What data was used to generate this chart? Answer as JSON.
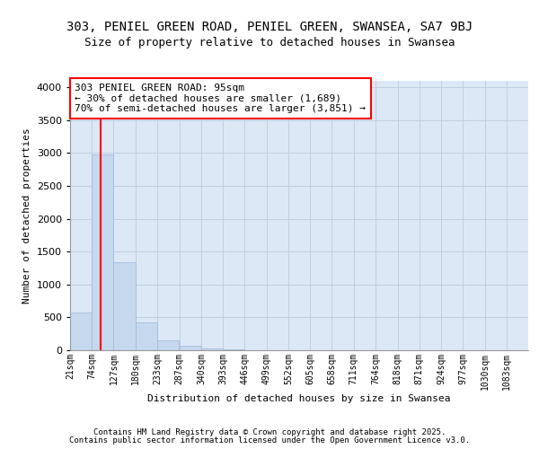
{
  "title1": "303, PENIEL GREEN ROAD, PENIEL GREEN, SWANSEA, SA7 9BJ",
  "title2": "Size of property relative to detached houses in Swansea",
  "xlabel": "Distribution of detached houses by size in Swansea",
  "ylabel": "Number of detached properties",
  "bar_color": "#c5d8ee",
  "bar_edgecolor": "#a0b8d8",
  "grid_color": "#c0cfe0",
  "bg_color": "#dce8f5",
  "vline_x": 95,
  "vline_color": "red",
  "annotation_text": "303 PENIEL GREEN ROAD: 95sqm\n← 30% of detached houses are smaller (1,689)\n70% of semi-detached houses are larger (3,851) →",
  "annotation_box_edgecolor": "red",
  "annotation_box_facecolor": "white",
  "bin_edges": [
    21,
    74,
    127,
    180,
    233,
    287,
    340,
    393,
    446,
    499,
    552,
    605,
    658,
    711,
    764,
    818,
    871,
    924,
    977,
    1030,
    1083,
    1136
  ],
  "bar_heights": [
    580,
    2980,
    1340,
    420,
    150,
    75,
    30,
    10,
    5,
    3,
    1,
    0,
    0,
    0,
    0,
    0,
    0,
    0,
    0,
    0,
    0
  ],
  "ylim": [
    0,
    4100
  ],
  "yticks": [
    0,
    500,
    1000,
    1500,
    2000,
    2500,
    3000,
    3500,
    4000
  ],
  "tick_labels": [
    "21sqm",
    "74sqm",
    "127sqm",
    "180sqm",
    "233sqm",
    "287sqm",
    "340sqm",
    "393sqm",
    "446sqm",
    "499sqm",
    "552sqm",
    "605sqm",
    "658sqm",
    "711sqm",
    "764sqm",
    "818sqm",
    "871sqm",
    "924sqm",
    "977sqm",
    "1030sqm",
    "1083sqm"
  ],
  "footer1": "Contains HM Land Registry data © Crown copyright and database right 2025.",
  "footer2": "Contains public sector information licensed under the Open Government Licence v3.0.",
  "title1_fontsize": 10,
  "title2_fontsize": 9,
  "xlabel_fontsize": 8,
  "ylabel_fontsize": 8,
  "tick_fontsize": 7,
  "ytick_fontsize": 8,
  "annotation_fontsize": 8,
  "footer_fontsize": 6.5
}
